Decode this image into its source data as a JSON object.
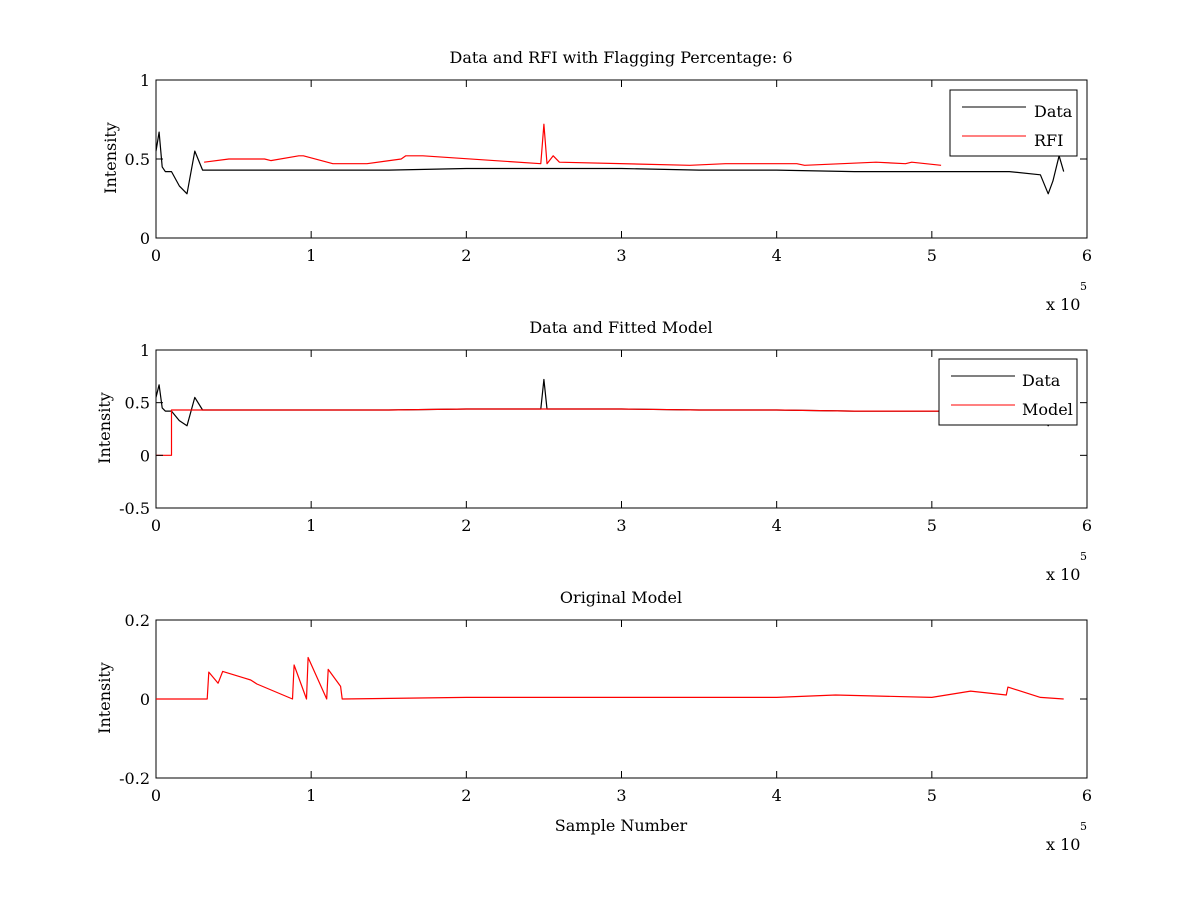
{
  "chart_data": [
    {
      "type": "line",
      "title": "Data and RFI with Flagging Percentage: 6",
      "xlabel": "",
      "ylabel": "Intensity",
      "xlim": [
        0,
        600000
      ],
      "ylim": [
        0,
        1
      ],
      "x_ticks": [
        "0",
        "1",
        "2",
        "3",
        "4",
        "5",
        "6"
      ],
      "y_ticks": [
        "0",
        "0.5",
        "1"
      ],
      "x_exponent_label": "x 10",
      "x_exponent_power": "5",
      "legend": {
        "position": "top-right",
        "entries": [
          "Data",
          "RFI"
        ]
      },
      "series": [
        {
          "name": "Data",
          "color": "#000000",
          "x": [
            0,
            2000,
            4000,
            6000,
            10000,
            15000,
            20000,
            25000,
            30000,
            50000,
            100000,
            150000,
            200000,
            250000,
            300000,
            350000,
            400000,
            450000,
            500000,
            550000,
            570000,
            575000,
            578000,
            582000,
            585000
          ],
          "y": [
            0.55,
            0.67,
            0.45,
            0.42,
            0.42,
            0.33,
            0.28,
            0.55,
            0.43,
            0.43,
            0.43,
            0.43,
            0.44,
            0.44,
            0.44,
            0.43,
            0.43,
            0.42,
            0.42,
            0.42,
            0.4,
            0.28,
            0.36,
            0.52,
            0.42
          ]
        },
        {
          "name": "RFI",
          "color": "#ff0000",
          "x": [
            31000,
            47000,
            53000,
            70000,
            74000,
            92000,
            95000,
            114000,
            136000,
            158000,
            161000,
            172000,
            248000,
            250000,
            252000,
            256000,
            260000,
            344000,
            367000,
            413000,
            418000,
            464000,
            483000,
            487000,
            506000
          ],
          "y": [
            0.48,
            0.5,
            0.5,
            0.5,
            0.49,
            0.52,
            0.52,
            0.47,
            0.47,
            0.5,
            0.52,
            0.52,
            0.47,
            0.72,
            0.47,
            0.52,
            0.48,
            0.46,
            0.47,
            0.47,
            0.46,
            0.48,
            0.47,
            0.48,
            0.46
          ]
        }
      ]
    },
    {
      "type": "line",
      "title": "Data and Fitted Model",
      "xlabel": "",
      "ylabel": "Intensity",
      "xlim": [
        0,
        600000
      ],
      "ylim": [
        -0.5,
        1
      ],
      "x_ticks": [
        "0",
        "1",
        "2",
        "3",
        "4",
        "5",
        "6"
      ],
      "y_ticks": [
        "-0.5",
        "0",
        "0.5",
        "1"
      ],
      "x_exponent_label": "x 10",
      "x_exponent_power": "5",
      "legend": {
        "position": "top-right",
        "entries": [
          "Data",
          "Model"
        ]
      },
      "series": [
        {
          "name": "Data",
          "color": "#000000",
          "x": [
            0,
            2000,
            4000,
            6000,
            10000,
            15000,
            20000,
            25000,
            30000,
            50000,
            100000,
            150000,
            200000,
            248000,
            250000,
            252000,
            300000,
            350000,
            400000,
            450000,
            500000,
            550000,
            570000,
            575000,
            578000,
            582000,
            585000
          ],
          "y": [
            0.55,
            0.67,
            0.45,
            0.42,
            0.42,
            0.33,
            0.28,
            0.55,
            0.43,
            0.43,
            0.43,
            0.43,
            0.44,
            0.44,
            0.72,
            0.44,
            0.44,
            0.43,
            0.43,
            0.42,
            0.42,
            0.42,
            0.4,
            0.28,
            0.36,
            0.52,
            0.42
          ]
        },
        {
          "name": "Model",
          "color": "#ff0000",
          "x": [
            0,
            10000,
            10000,
            50000,
            100000,
            150000,
            200000,
            250000,
            300000,
            350000,
            400000,
            450000,
            500000,
            550000,
            585000
          ],
          "y": [
            0,
            0,
            0.43,
            0.43,
            0.43,
            0.43,
            0.44,
            0.44,
            0.44,
            0.43,
            0.43,
            0.42,
            0.42,
            0.42,
            0.42
          ]
        }
      ]
    },
    {
      "type": "line",
      "title": "Original Model",
      "xlabel": "Sample Number",
      "ylabel": "Intensity",
      "xlim": [
        0,
        600000
      ],
      "ylim": [
        -0.2,
        0.2
      ],
      "x_ticks": [
        "0",
        "1",
        "2",
        "3",
        "4",
        "5",
        "6"
      ],
      "y_ticks": [
        "-0.2",
        "0",
        "0.2"
      ],
      "x_exponent_label": "x 10",
      "x_exponent_power": "5",
      "series": [
        {
          "color": "#ff0000",
          "x": [
            0,
            33000,
            34000,
            40000,
            43000,
            57000,
            61000,
            65000,
            88000,
            89000,
            97000,
            98000,
            110000,
            111000,
            119000,
            120000,
            200000,
            300000,
            400000,
            438000,
            500000,
            525000,
            548000,
            549000,
            570000,
            585000
          ],
          "y": [
            0,
            0,
            0.068,
            0.04,
            0.07,
            0.053,
            0.048,
            0.038,
            0,
            0.086,
            0,
            0.105,
            0,
            0.075,
            0.032,
            0,
            0.004,
            0.004,
            0.004,
            0.01,
            0.004,
            0.02,
            0.01,
            0.03,
            0.004,
            0
          ]
        }
      ]
    }
  ]
}
